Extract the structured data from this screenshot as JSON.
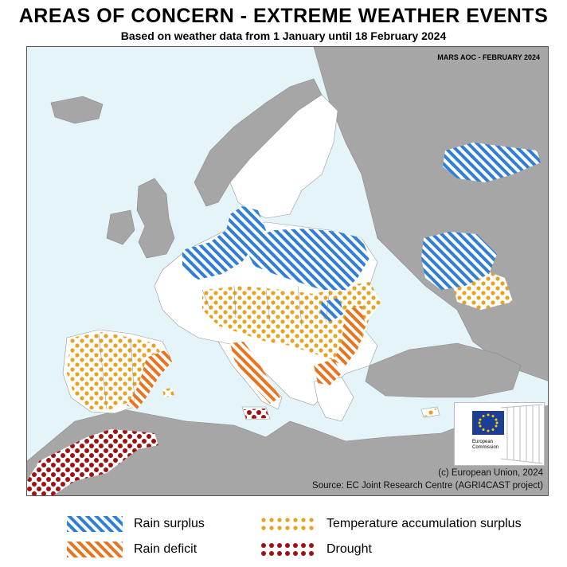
{
  "header": {
    "title": "AREAS OF CONCERN - EXTREME WEATHER EVENTS",
    "subtitle": "Based on weather data from 1 January until 18 February 2024"
  },
  "map": {
    "code": "MARS AOC - FEBRUARY 2024",
    "credit_line1": "(c) European Union, 2024",
    "credit_line2": "Source: EC Joint Research Centre (AGRI4CAST project)",
    "logo_text_line1": "European",
    "logo_text_line2": "Commission"
  },
  "legend": {
    "rain_surplus": "Rain surplus",
    "rain_deficit": "Rain deficit",
    "temperature_surplus": "Temperature accumulation surplus",
    "drought": "Drought"
  },
  "colors": {
    "sea": "#e4f4f8",
    "land_eu": "#ffffff",
    "land_other": "#a6a6a6",
    "rain_surplus": "#2f7fd8",
    "rain_deficit": "#e8741e",
    "temperature_surplus": "#e8a21e",
    "drought": "#a01010"
  }
}
